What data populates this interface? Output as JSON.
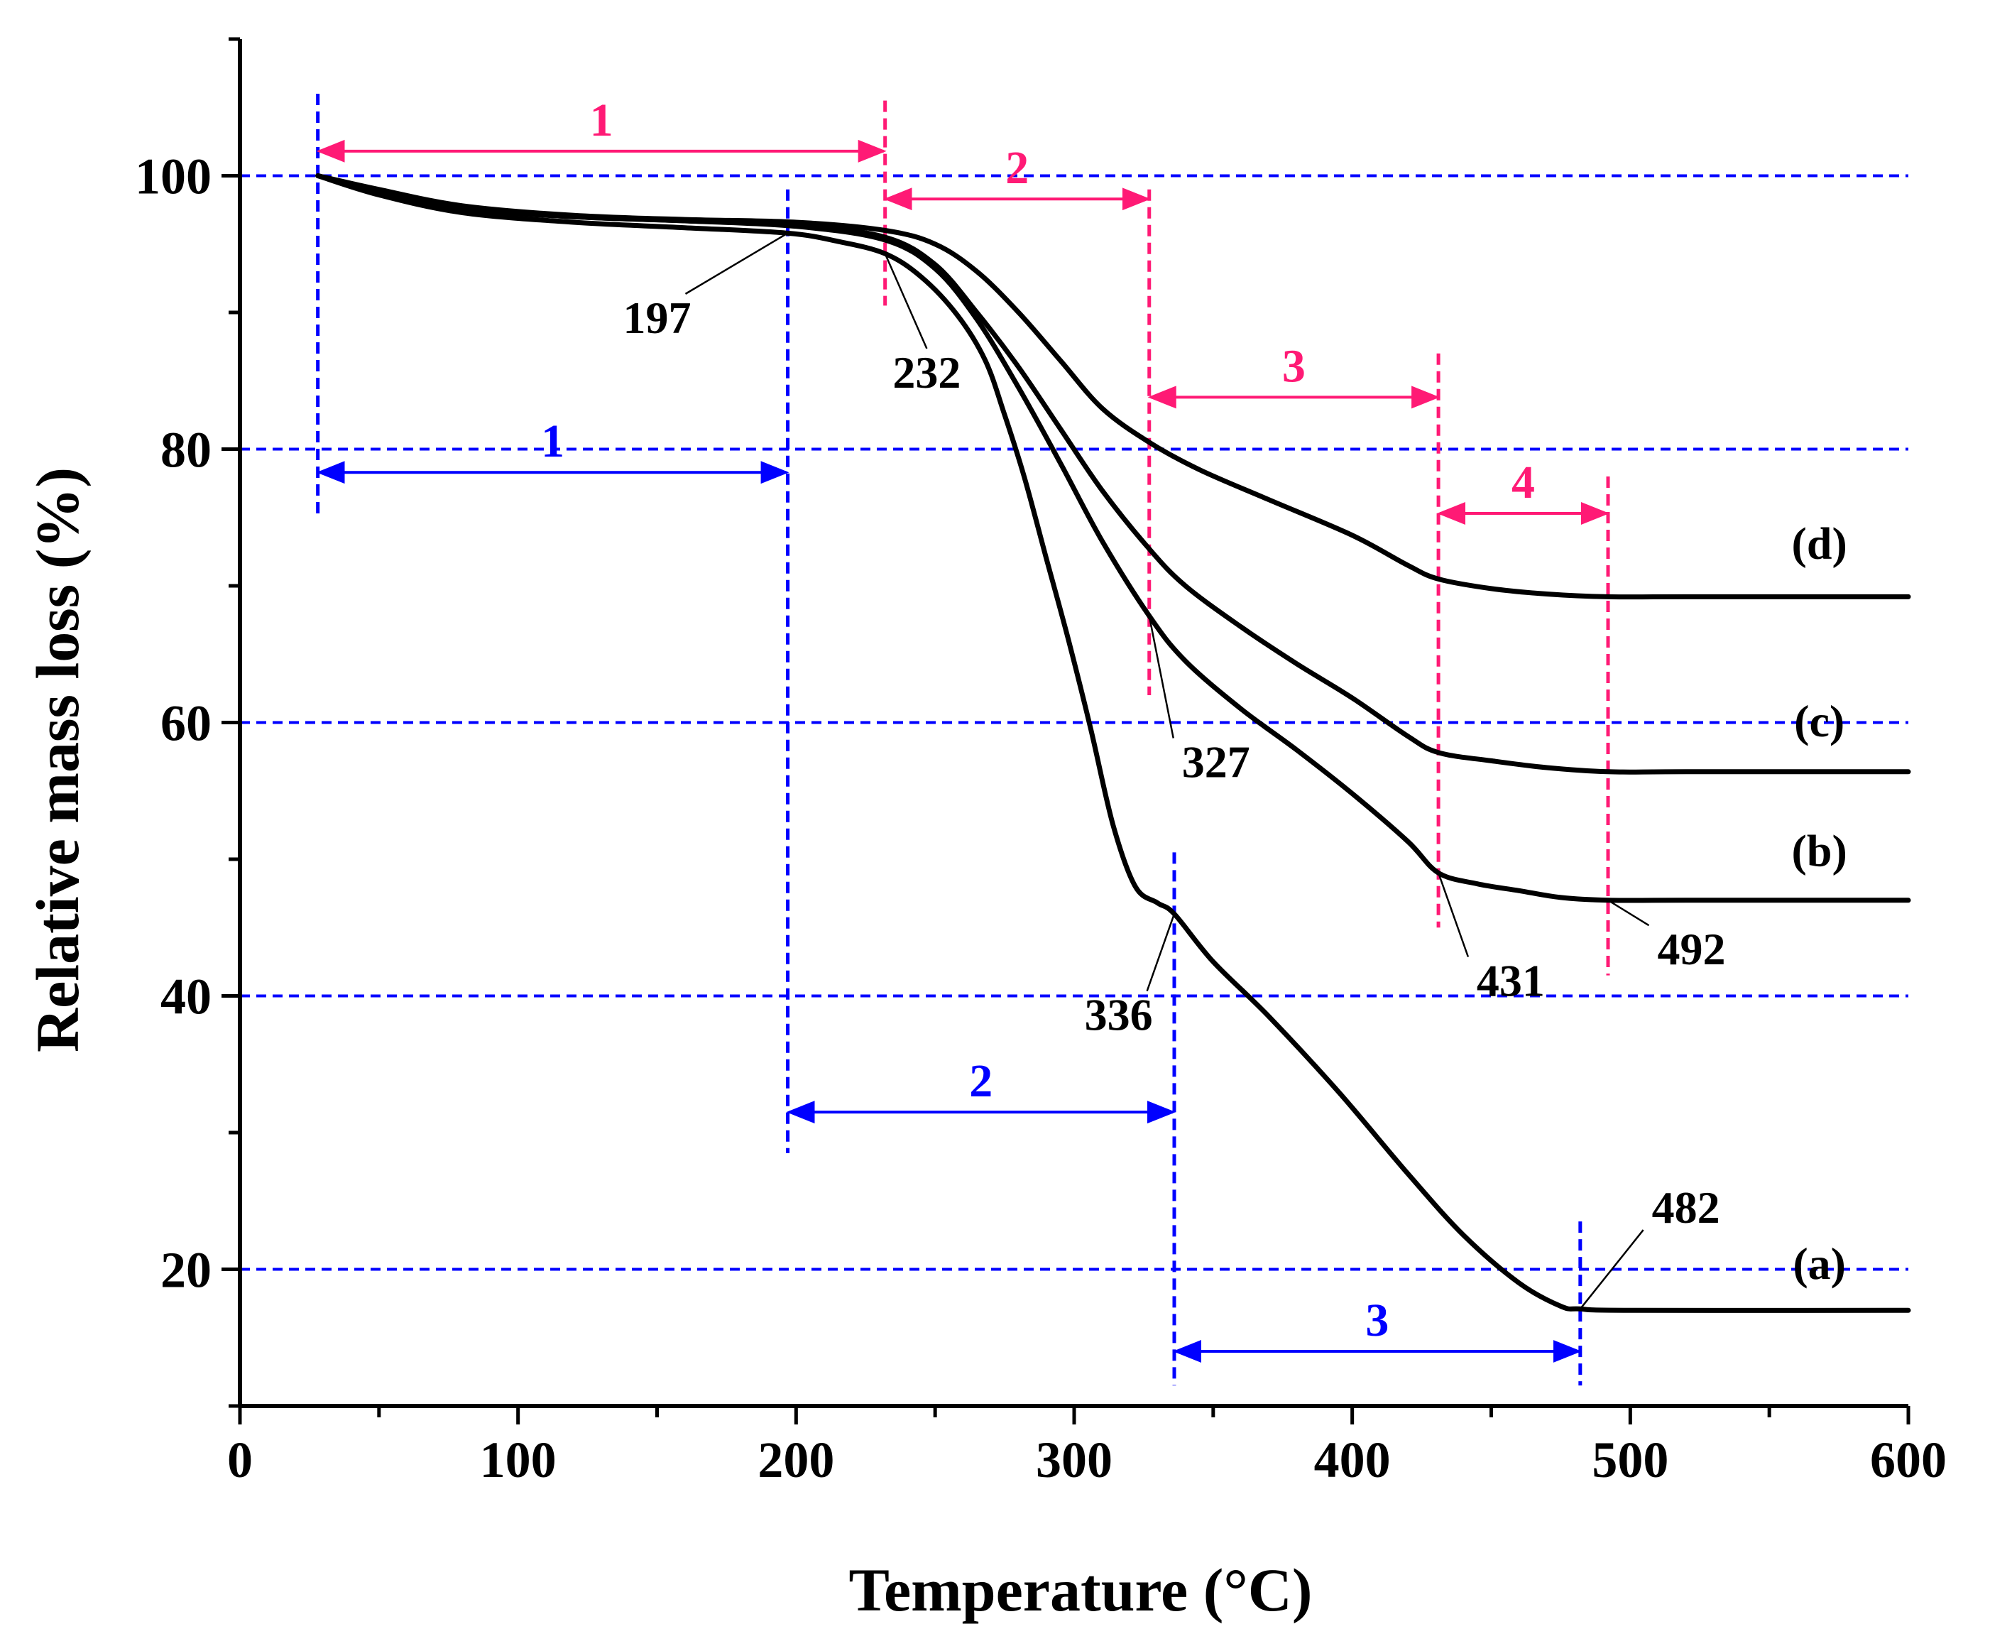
{
  "chart_data": {
    "type": "line",
    "xlabel": "Temperature (°C)",
    "ylabel": "Relative mass loss (%)",
    "xlim": [
      0,
      600
    ],
    "ylim": [
      10,
      110
    ],
    "xticks": [
      0,
      100,
      200,
      300,
      400,
      500,
      600
    ],
    "yticks": [
      20,
      40,
      60,
      80,
      100
    ],
    "horizontal_gridlines": [
      20,
      40,
      60,
      80,
      100
    ],
    "grid_color": "#0000ff",
    "series": [
      {
        "name": "(a)",
        "color": "#000000",
        "points": [
          [
            28,
            100
          ],
          [
            50,
            98.6
          ],
          [
            80,
            97.3
          ],
          [
            120,
            96.6
          ],
          [
            160,
            96.2
          ],
          [
            197,
            95.8
          ],
          [
            215,
            95.2
          ],
          [
            232,
            94.3
          ],
          [
            245,
            92.6
          ],
          [
            258,
            89.8
          ],
          [
            268,
            86.5
          ],
          [
            275,
            82.5
          ],
          [
            282,
            78
          ],
          [
            290,
            72
          ],
          [
            298,
            66
          ],
          [
            306,
            59.5
          ],
          [
            314,
            52.5
          ],
          [
            322,
            48
          ],
          [
            330,
            46.8
          ],
          [
            336,
            46
          ],
          [
            350,
            42.5
          ],
          [
            370,
            38.5
          ],
          [
            395,
            33
          ],
          [
            420,
            27
          ],
          [
            440,
            22.5
          ],
          [
            460,
            19
          ],
          [
            475,
            17.3
          ],
          [
            482,
            17.1
          ],
          [
            500,
            17
          ],
          [
            600,
            17
          ]
        ]
      },
      {
        "name": "(b)",
        "color": "#000000",
        "points": [
          [
            28,
            100
          ],
          [
            50,
            98.8
          ],
          [
            80,
            97.6
          ],
          [
            120,
            97
          ],
          [
            160,
            96.7
          ],
          [
            200,
            96.3
          ],
          [
            232,
            95.3
          ],
          [
            250,
            93.2
          ],
          [
            265,
            89.5
          ],
          [
            280,
            84.5
          ],
          [
            295,
            79
          ],
          [
            310,
            73.3
          ],
          [
            327,
            67.8
          ],
          [
            340,
            64.5
          ],
          [
            360,
            61
          ],
          [
            380,
            58
          ],
          [
            400,
            54.8
          ],
          [
            420,
            51.3
          ],
          [
            431,
            49
          ],
          [
            445,
            48.2
          ],
          [
            460,
            47.7
          ],
          [
            475,
            47.2
          ],
          [
            492,
            47
          ],
          [
            520,
            47
          ],
          [
            600,
            47
          ]
        ]
      },
      {
        "name": "(c)",
        "color": "#000000",
        "points": [
          [
            28,
            100
          ],
          [
            50,
            98.8
          ],
          [
            80,
            97.6
          ],
          [
            120,
            97
          ],
          [
            160,
            96.7
          ],
          [
            200,
            96.4
          ],
          [
            232,
            95.5
          ],
          [
            250,
            93.5
          ],
          [
            265,
            90
          ],
          [
            280,
            86
          ],
          [
            295,
            81.5
          ],
          [
            310,
            77
          ],
          [
            327,
            72.7
          ],
          [
            340,
            70
          ],
          [
            360,
            67
          ],
          [
            380,
            64.3
          ],
          [
            400,
            61.8
          ],
          [
            420,
            59
          ],
          [
            431,
            57.8
          ],
          [
            450,
            57.2
          ],
          [
            470,
            56.7
          ],
          [
            492,
            56.4
          ],
          [
            520,
            56.4
          ],
          [
            600,
            56.4
          ]
        ]
      },
      {
        "name": "(d)",
        "color": "#000000",
        "points": [
          [
            28,
            100
          ],
          [
            50,
            99
          ],
          [
            80,
            97.8
          ],
          [
            120,
            97.1
          ],
          [
            160,
            96.8
          ],
          [
            200,
            96.6
          ],
          [
            232,
            96
          ],
          [
            250,
            95
          ],
          [
            265,
            93
          ],
          [
            280,
            90
          ],
          [
            295,
            86.5
          ],
          [
            310,
            83
          ],
          [
            327,
            80.5
          ],
          [
            345,
            78.5
          ],
          [
            370,
            76.3
          ],
          [
            400,
            73.7
          ],
          [
            420,
            71.5
          ],
          [
            431,
            70.5
          ],
          [
            450,
            69.8
          ],
          [
            470,
            69.4
          ],
          [
            492,
            69.2
          ],
          [
            520,
            69.2
          ],
          [
            600,
            69.2
          ]
        ]
      }
    ],
    "point_annotations": [
      {
        "label": "197",
        "point": [
          197,
          95.8
        ],
        "text_at": [
          150,
          88.5
        ]
      },
      {
        "label": "232",
        "point": [
          232,
          94.3
        ],
        "text_at": [
          247,
          84.5
        ]
      },
      {
        "label": "327",
        "point": [
          327,
          67.8
        ],
        "text_at": [
          351,
          56
        ]
      },
      {
        "label": "336",
        "point": [
          336,
          46
        ],
        "text_at": [
          316,
          37.5
        ]
      },
      {
        "label": "431",
        "point": [
          431,
          49
        ],
        "text_at": [
          457,
          40
        ]
      },
      {
        "label": "492",
        "point": [
          492,
          47
        ],
        "text_at": [
          522,
          42.3
        ]
      },
      {
        "label": "482",
        "point": [
          482,
          17.1
        ],
        "text_at": [
          520,
          23.4
        ]
      }
    ],
    "curve_labels": [
      {
        "label": "(d)",
        "at": [
          568,
          72
        ]
      },
      {
        "label": "(c)",
        "at": [
          568,
          59
        ]
      },
      {
        "label": "(b)",
        "at": [
          568,
          49.5
        ]
      },
      {
        "label": "(a)",
        "at": [
          568,
          19.3
        ]
      }
    ],
    "stage_markers": {
      "pink_color": "#ff1a75",
      "blue_color": "#0000ff",
      "pink_vlines": [
        {
          "x": 232,
          "y": [
            90.5,
            105.5
          ]
        },
        {
          "x": 327,
          "y": [
            62,
            99
          ]
        },
        {
          "x": 431,
          "y": [
            45,
            87
          ]
        },
        {
          "x": 492,
          "y": [
            41.5,
            78
          ]
        }
      ],
      "blue_vlines": [
        {
          "x": 28,
          "y": [
            75,
            106
          ]
        },
        {
          "x": 197,
          "y": [
            28.5,
            99
          ]
        },
        {
          "x": 336,
          "y": [
            11.5,
            50.5
          ]
        },
        {
          "x": 482,
          "y": [
            11.5,
            23.5
          ]
        }
      ],
      "pink_arrows": [
        {
          "label": "1",
          "x": [
            28,
            232
          ],
          "y": 101.8
        },
        {
          "label": "2",
          "x": [
            232,
            327
          ],
          "y": 98.3
        },
        {
          "label": "3",
          "x": [
            327,
            431
          ],
          "y": 83.8
        },
        {
          "label": "4",
          "x": [
            431,
            492
          ],
          "y": 75.3
        }
      ],
      "blue_arrows": [
        {
          "label": "1",
          "x": [
            28,
            197
          ],
          "y": 78.3
        },
        {
          "label": "2",
          "x": [
            197,
            336
          ],
          "y": 31.5
        },
        {
          "label": "3",
          "x": [
            336,
            482
          ],
          "y": 14
        }
      ]
    }
  }
}
